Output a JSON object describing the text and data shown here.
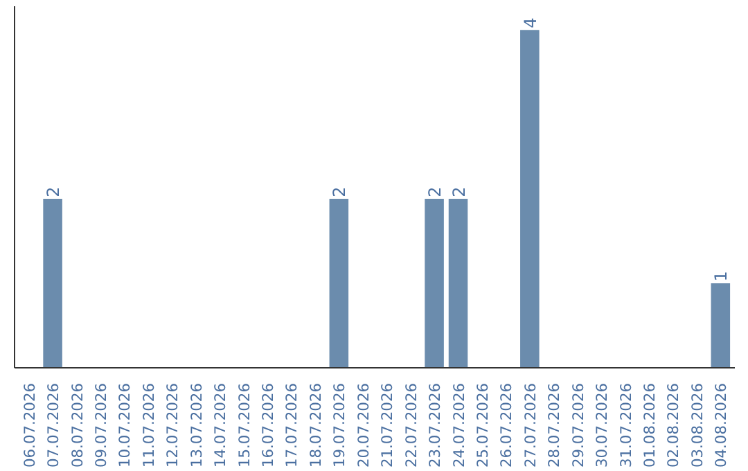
{
  "chart_data": {
    "type": "bar",
    "categories": [
      "06.07.2026",
      "07.07.2026",
      "08.07.2026",
      "09.07.2026",
      "10.07.2026",
      "11.07.2026",
      "12.07.2026",
      "13.07.2026",
      "14.07.2026",
      "15.07.2026",
      "16.07.2026",
      "17.07.2026",
      "18.07.2026",
      "19.07.2026",
      "20.07.2026",
      "21.07.2026",
      "22.07.2026",
      "23.07.2026",
      "24.07.2026",
      "25.07.2026",
      "26.07.2026",
      "27.07.2026",
      "28.07.2026",
      "29.07.2026",
      "30.07.2026",
      "31.07.2026",
      "01.08.2026",
      "02.08.2026",
      "03.08.2026",
      "04.08.2026"
    ],
    "values": [
      0,
      2,
      0,
      0,
      0,
      0,
      0,
      0,
      0,
      0,
      0,
      0,
      0,
      2,
      0,
      0,
      0,
      2,
      2,
      0,
      0,
      4,
      0,
      0,
      0,
      0,
      0,
      0,
      0,
      1
    ],
    "value_labels": [
      null,
      "2",
      null,
      null,
      null,
      null,
      null,
      null,
      null,
      null,
      null,
      null,
      null,
      "2",
      null,
      null,
      null,
      "2",
      "2",
      null,
      null,
      "4",
      null,
      null,
      null,
      null,
      null,
      null,
      null,
      "1"
    ],
    "color": "#6b8cad",
    "grid": false
  }
}
